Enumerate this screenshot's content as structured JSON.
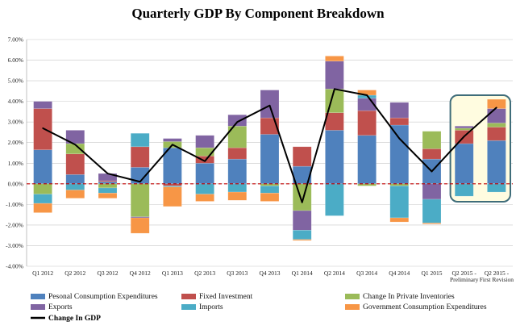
{
  "chart_data": {
    "type": "bar",
    "title": "Quarterly GDP By Component Breakdown",
    "ylim": [
      -4,
      7
    ],
    "yticks": [
      "-4.00%",
      "-3.00%",
      "-2.00%",
      "-1.00%",
      "0.00%",
      "1.00%",
      "2.00%",
      "3.00%",
      "4.00%",
      "5.00%",
      "6.00%",
      "7.00%"
    ],
    "grid": true,
    "legend_placement": "bottom",
    "categories": [
      "Q1 2012",
      "Q2 2012",
      "Q3 2012",
      "Q4 2012",
      "Q1 2013",
      "Q2 2013",
      "Q3 2013",
      "Q4 2013",
      "Q1 2014",
      "Q2 2014",
      "Q3 2014",
      "Q4 2014",
      "Q1 2015",
      "Q2 2015 - Preliminary",
      "Q2 2015 - First Revision"
    ],
    "highlighted_categories": [
      "Q2 2015 - Preliminary",
      "Q2 2015 - First Revision"
    ],
    "series": [
      {
        "name": "Pesonal Consumption Expenditures",
        "color": "#4f81bd",
        "values": [
          1.65,
          0.45,
          0.1,
          0.8,
          1.75,
          1.0,
          1.2,
          2.4,
          0.85,
          2.6,
          2.35,
          2.85,
          1.2,
          1.95,
          2.1
        ]
      },
      {
        "name": "Fixed Investment",
        "color": "#c0504d",
        "values": [
          2.0,
          1.0,
          0.05,
          1.0,
          -0.1,
          0.35,
          0.55,
          0.8,
          0.95,
          0.85,
          1.2,
          0.35,
          0.5,
          0.65,
          0.65
        ]
      },
      {
        "name": "Change In Private Inventories",
        "color": "#9bbb59",
        "values": [
          -0.5,
          0.5,
          -0.2,
          -1.6,
          0.3,
          0.4,
          1.05,
          -0.1,
          -1.3,
          1.15,
          -0.1,
          -0.1,
          0.85,
          0.1,
          0.2
        ]
      },
      {
        "name": "Exports",
        "color": "#8064a2",
        "values": [
          0.35,
          0.65,
          0.35,
          -0.05,
          0.15,
          0.6,
          0.55,
          1.35,
          -0.95,
          1.35,
          0.6,
          0.75,
          -0.75,
          0.1,
          0.7
        ]
      },
      {
        "name": "Imports",
        "color": "#4bacc6",
        "values": [
          -0.45,
          -0.3,
          -0.25,
          0.65,
          -0.05,
          -0.5,
          -0.4,
          -0.35,
          -0.45,
          -1.55,
          0.15,
          -1.55,
          -1.15,
          -0.6,
          -0.4
        ]
      },
      {
        "name": "Government Consumption Expenditures",
        "color": "#f79646",
        "values": [
          -0.45,
          -0.4,
          -0.25,
          -0.75,
          -0.95,
          -0.35,
          -0.4,
          -0.4,
          -0.05,
          0.25,
          0.25,
          -0.2,
          -0.05,
          0.0,
          0.45
        ]
      }
    ],
    "line": {
      "name": "Change In GDP",
      "color": "#000000",
      "values": [
        2.7,
        1.9,
        0.5,
        0.1,
        1.9,
        1.1,
        3.0,
        3.8,
        -0.9,
        4.6,
        4.3,
        2.2,
        0.6,
        2.3,
        3.7
      ]
    }
  }
}
